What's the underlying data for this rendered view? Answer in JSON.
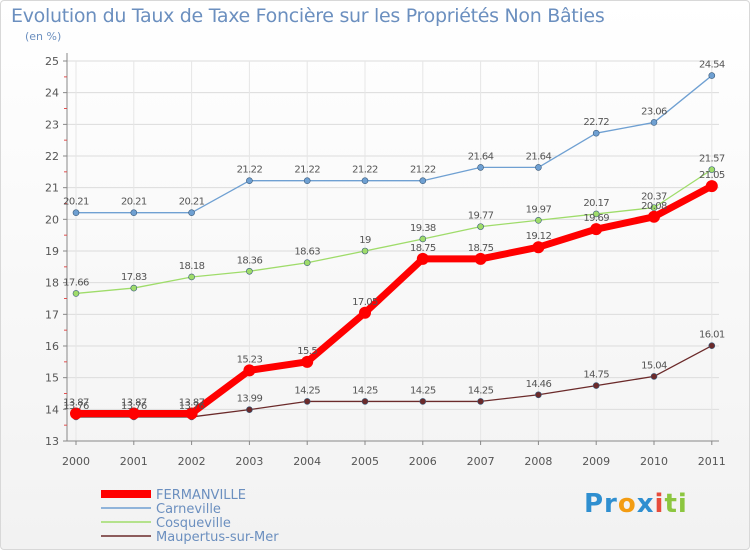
{
  "chart_data": {
    "type": "line",
    "title": "Evolution du Taux de Taxe Foncière sur les Propriétés Non Bâties",
    "ylabel": "(en %)",
    "xlabel": "",
    "categories": [
      "2000",
      "2001",
      "2002",
      "2003",
      "2004",
      "2005",
      "2006",
      "2007",
      "2008",
      "2009",
      "2010",
      "2011"
    ],
    "ylim": [
      13,
      25
    ],
    "yticks": [
      "13",
      "14",
      "15",
      "16",
      "17",
      "18",
      "19",
      "20",
      "21",
      "22",
      "23",
      "24",
      "25"
    ],
    "grid": true,
    "legend_position": "bottom-left",
    "series": [
      {
        "name": "FERMANVILLE",
        "color": "#ff0000",
        "values": [
          13.87,
          13.87,
          13.87,
          15.23,
          15.5,
          17.05,
          18.75,
          18.75,
          19.12,
          19.69,
          20.08,
          21.05
        ],
        "labels": [
          "13.87",
          "13.87",
          "13.87",
          "15.23",
          "15.5",
          "17.05",
          "18.75",
          "18.75",
          "19.12",
          "19.69",
          "20.08",
          "21.05"
        ]
      },
      {
        "name": "Carneville",
        "color": "#6fa0d2",
        "values": [
          20.21,
          20.21,
          20.21,
          21.22,
          21.22,
          21.22,
          21.22,
          21.64,
          21.64,
          22.72,
          23.06,
          24.54
        ],
        "labels": [
          "20.21",
          "20.21",
          "20.21",
          "21.22",
          "21.22",
          "21.22",
          "21.22",
          "21.64",
          "21.64",
          "22.72",
          "23.06",
          "24.54"
        ]
      },
      {
        "name": "Cosqueville",
        "color": "#9fdc6a",
        "values": [
          17.66,
          17.83,
          18.18,
          18.36,
          18.63,
          19,
          19.38,
          19.77,
          19.97,
          20.17,
          20.37,
          21.57
        ],
        "labels": [
          "17.66",
          "17.83",
          "18.18",
          "18.36",
          "18.63",
          "19",
          "19.38",
          "19.77",
          "19.97",
          "20.17",
          "20.37",
          "21.57"
        ]
      },
      {
        "name": "Maupertus-sur-Mer",
        "color": "#6b2a2a",
        "values": [
          13.76,
          13.76,
          13.76,
          13.99,
          14.25,
          14.25,
          14.25,
          14.25,
          14.46,
          14.75,
          15.04,
          16.01
        ],
        "labels": [
          "13.76",
          "13.76",
          "13.76",
          "13.99",
          "14.25",
          "14.25",
          "14.25",
          "14.25",
          "14.46",
          "14.75",
          "15.04",
          "16.01"
        ]
      }
    ]
  },
  "logo": {
    "parts": [
      "Pr",
      "o",
      "x",
      "i",
      "ti"
    ]
  }
}
